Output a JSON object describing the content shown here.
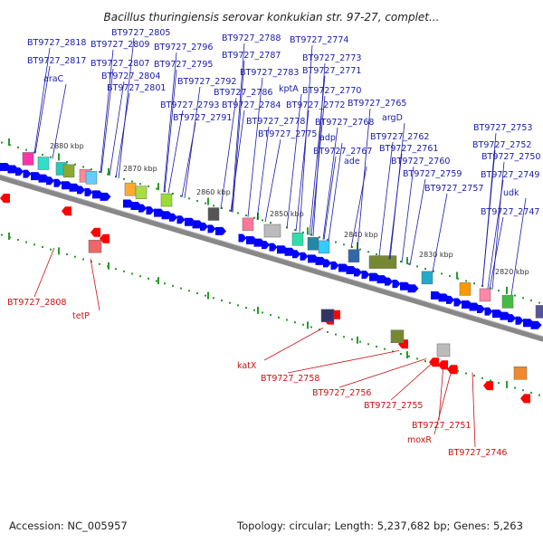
{
  "title": "Bacillus thuringiensis serovar konkukian str. 97-27, complet...",
  "footer": {
    "accession": "Accession: NC_005957",
    "summary": "Topology: circular; Length: 5,237,682 bp; Genes: 5,263"
  },
  "scale_labels": [
    "2880 kbp",
    "2870 kbp",
    "2860 kbp",
    "2850 kbp",
    "2840 kbp",
    "2830 kbp",
    "2820 kbp"
  ],
  "colors": {
    "forward": "#1a1aaa",
    "reverse": "#cc1111",
    "forward_gene": "#0000ff",
    "reverse_gene": "#ff0000",
    "backbone": "#888888",
    "tick": "#2a9a2a"
  },
  "forward_labels": [
    "BT9727_2818",
    "BT9727_2817",
    "araC",
    "BT9727_2809",
    "BT9727_2807",
    "BT9727_2805",
    "BT9727_2804",
    "BT9727_2801",
    "BT9727_2796",
    "BT9727_2795",
    "BT9727_2792",
    "BT9727_2793",
    "BT9727_2791",
    "BT9727_2788",
    "BT9727_2787",
    "BT9727_2786",
    "BT9727_2783",
    "BT9727_2784",
    "BT9727_2774",
    "BT9727_2773",
    "BT9727_2771",
    "kptA",
    "BT9727_2770",
    "BT9727_2772",
    "BT9727_2778",
    "BT9727_2775",
    "BT9727_2768",
    "adp",
    "BT9727_2765",
    "BT9727_2767",
    "ade",
    "argD",
    "BT9727_2762",
    "BT9727_2761",
    "BT9727_2760",
    "BT9727_2759",
    "BT9727_2757",
    "BT9727_2753",
    "BT9727_2752",
    "BT9727_2750",
    "BT9727_2749",
    "udk",
    "BT9727_2747"
  ],
  "reverse_labels": [
    "BT9727_2808",
    "tetP",
    "katX",
    "BT9727_2758",
    "BT9727_2756",
    "BT9727_2755",
    "BT9727_2751",
    "moxR",
    "BT9727_2746"
  ]
}
